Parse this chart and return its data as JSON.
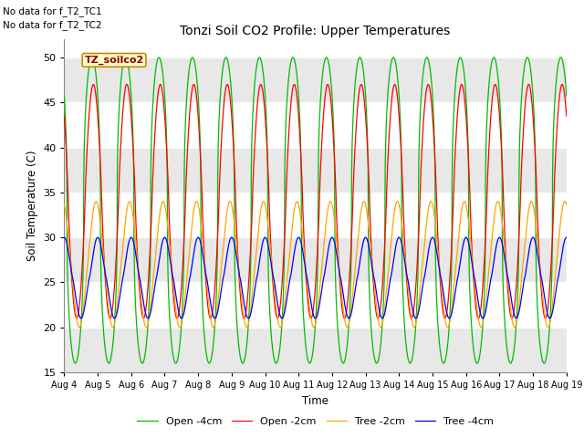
{
  "title": "Tonzi Soil CO2 Profile: Upper Temperatures",
  "ylabel": "Soil Temperature (C)",
  "xlabel": "Time",
  "annotation1": "No data for f_T2_TC1",
  "annotation2": "No data for f_T2_TC2",
  "box_label": "TZ_soilco2",
  "ylim": [
    15,
    52
  ],
  "yticks": [
    15,
    20,
    25,
    30,
    35,
    40,
    45,
    50
  ],
  "colors": {
    "open_2cm": "#ff0000",
    "tree_2cm": "#ffa500",
    "open_4cm": "#00bb00",
    "tree_4cm": "#0000ff"
  },
  "legend_labels": [
    "Open -2cm",
    "Tree -2cm",
    "Open -4cm",
    "Tree -4cm"
  ],
  "background_fig": "#ffffff",
  "n_days": 15,
  "pts_per_day": 144
}
